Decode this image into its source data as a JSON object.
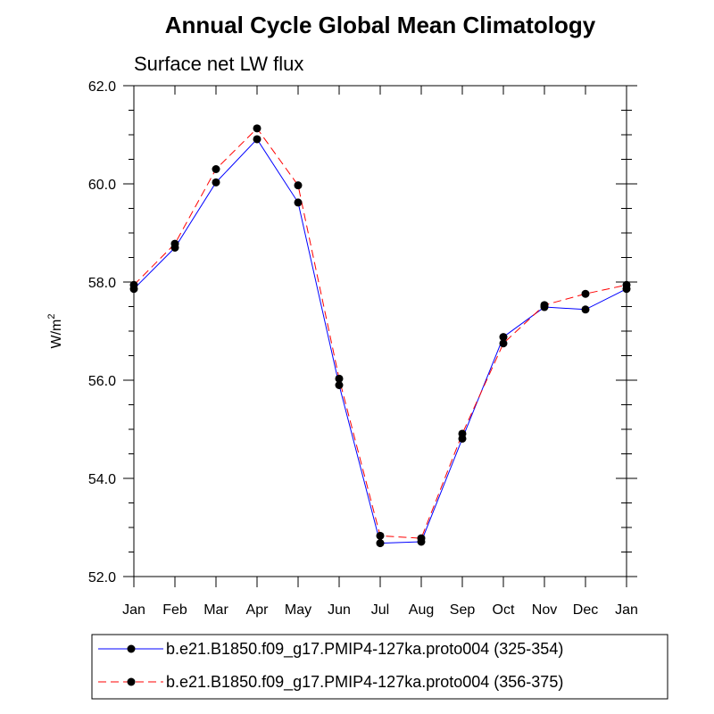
{
  "chart_data": {
    "type": "line",
    "title": "Annual Cycle Global Mean Climatology",
    "subtitle": "Surface net LW flux",
    "ylabel": "W/m",
    "ylabel_superscript": "2",
    "xlabel": "",
    "categories": [
      "Jan",
      "Feb",
      "Mar",
      "Apr",
      "May",
      "Jun",
      "Jul",
      "Aug",
      "Sep",
      "Oct",
      "Nov",
      "Dec",
      "Jan"
    ],
    "ylim": [
      52.0,
      62.0
    ],
    "yticks": [
      52.0,
      54.0,
      56.0,
      58.0,
      60.0,
      62.0
    ],
    "ytick_labels": [
      "52.0",
      "54.0",
      "56.0",
      "58.0",
      "60.0",
      "62.0"
    ],
    "legend_position": "bottom",
    "series": [
      {
        "name": "b.e21.B1850.f09_g17.PMIP4-127ka.proto004 (325-354)",
        "color": "#0000ff",
        "dash": "solid",
        "values": [
          57.86,
          58.7,
          60.03,
          60.91,
          59.62,
          55.9,
          52.68,
          52.71,
          54.81,
          56.88,
          57.49,
          57.44,
          57.86
        ]
      },
      {
        "name": "b.e21.B1850.f09_g17.PMIP4-127ka.proto004 (356-375)",
        "color": "#ff0000",
        "dash": "dashed",
        "values": [
          57.94,
          58.78,
          60.3,
          61.13,
          59.97,
          56.03,
          52.83,
          52.78,
          54.91,
          56.75,
          57.53,
          57.76,
          57.94
        ]
      }
    ]
  }
}
